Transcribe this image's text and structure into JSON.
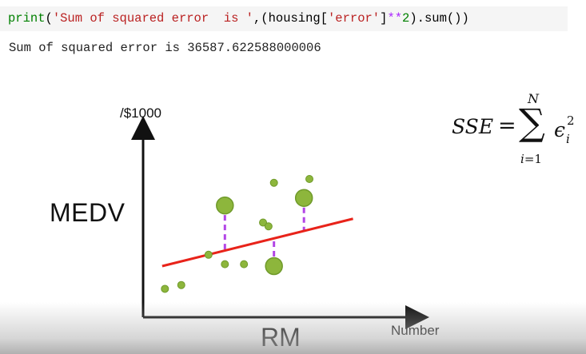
{
  "code": {
    "tokens": [
      {
        "cls": "tok-builtin",
        "text": "print"
      },
      {
        "cls": "tok-plain",
        "text": "("
      },
      {
        "cls": "tok-str",
        "text": "'Sum of squared error  is '"
      },
      {
        "cls": "tok-plain",
        "text": ",(housing["
      },
      {
        "cls": "tok-str",
        "text": "'error'"
      },
      {
        "cls": "tok-plain",
        "text": "]"
      },
      {
        "cls": "tok-op",
        "text": "**"
      },
      {
        "cls": "tok-num",
        "text": "2"
      },
      {
        "cls": "tok-plain",
        "text": ").sum())"
      }
    ]
  },
  "output": "Sum of squared error is 36587.622588000006",
  "slide": {
    "y_unit": "/$1000",
    "y_label": "MEDV",
    "x_label": "RM",
    "x_unit": "Number",
    "formula": {
      "lhs": "SSE",
      "eq": "=",
      "sigma": "∑",
      "upper": "N",
      "lower_var": "i",
      "lower_rest": "=1",
      "eps": "ϵ",
      "sup": "2",
      "sub": "i"
    }
  },
  "chart_data": {
    "type": "scatter",
    "points": [
      {
        "x": 0.08,
        "y": 0.15,
        "highlight": false
      },
      {
        "x": 0.14,
        "y": 0.17,
        "highlight": false
      },
      {
        "x": 0.24,
        "y": 0.33,
        "highlight": false
      },
      {
        "x": 0.3,
        "y": 0.28,
        "highlight": false
      },
      {
        "x": 0.37,
        "y": 0.28,
        "highlight": false
      },
      {
        "x": 0.44,
        "y": 0.5,
        "highlight": false
      },
      {
        "x": 0.46,
        "y": 0.48,
        "highlight": false
      },
      {
        "x": 0.48,
        "y": 0.71,
        "highlight": false
      },
      {
        "x": 0.61,
        "y": 0.73,
        "highlight": false
      },
      {
        "x": 0.3,
        "y": 0.59,
        "highlight": true
      },
      {
        "x": 0.48,
        "y": 0.27,
        "highlight": true
      },
      {
        "x": 0.59,
        "y": 0.63,
        "highlight": true
      }
    ],
    "regression_line": {
      "x": [
        0.07,
        0.77
      ],
      "y": [
        0.27,
        0.52
      ]
    },
    "line_color": "#e8231a",
    "point_color": "#8db63c",
    "residual_color": "#b245e6"
  }
}
